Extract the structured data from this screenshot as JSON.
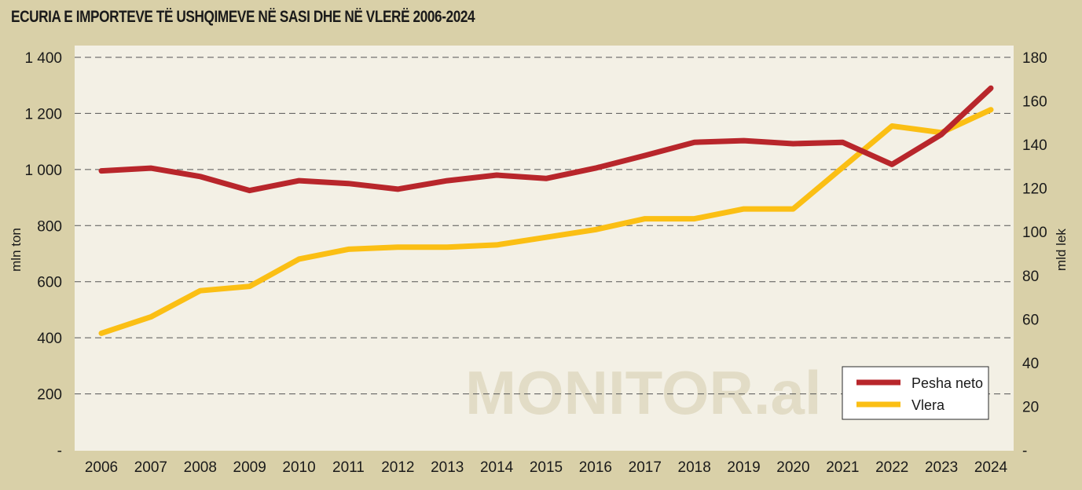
{
  "chart_data": {
    "type": "line",
    "title": "ECURIA E IMPORTEVE TË USHQIMEVE NË SASI DHE NË VLERË 2006-2024",
    "watermark": "MONITOR.al",
    "x": [
      "2006",
      "2007",
      "2008",
      "2009",
      "2010",
      "2011",
      "2012",
      "2013",
      "2014",
      "2015",
      "2016",
      "2017",
      "2018",
      "2019",
      "2020",
      "2021",
      "2022",
      "2023",
      "2024"
    ],
    "y_left": {
      "label": "mln ton",
      "range": [
        0,
        1400
      ],
      "ticks": [
        0,
        200,
        400,
        600,
        800,
        1000,
        1200,
        1400
      ],
      "tick_labels": [
        "-",
        "200",
        "400",
        "600",
        "800",
        "1 000",
        "1 200",
        "1 400"
      ]
    },
    "y_right": {
      "label": "mld lek",
      "range": [
        0,
        180
      ],
      "ticks": [
        0,
        20,
        40,
        60,
        80,
        100,
        120,
        140,
        160,
        180
      ],
      "tick_labels": [
        "-",
        "20",
        "40",
        "60",
        "80",
        "100",
        "120",
        "140",
        "160",
        "180"
      ]
    },
    "series": [
      {
        "name": "Pesha neto",
        "axis": "left",
        "color": "#b8262b",
        "values": [
          995,
          1005,
          975,
          925,
          960,
          950,
          930,
          960,
          980,
          968,
          1005,
          1050,
          1097,
          1103,
          1092,
          1097,
          1018,
          1125,
          1290
        ]
      },
      {
        "name": "Vlera",
        "axis": "right",
        "color": "#fbbf14",
        "values": [
          53.5,
          61,
          73,
          75,
          87.5,
          92,
          93,
          93,
          94,
          97.5,
          101,
          106,
          106,
          110.5,
          110.5,
          129.5,
          148.5,
          145.5,
          156
        ]
      }
    ],
    "grid": "horizontal dashed",
    "legend_position": "bottom-right"
  }
}
